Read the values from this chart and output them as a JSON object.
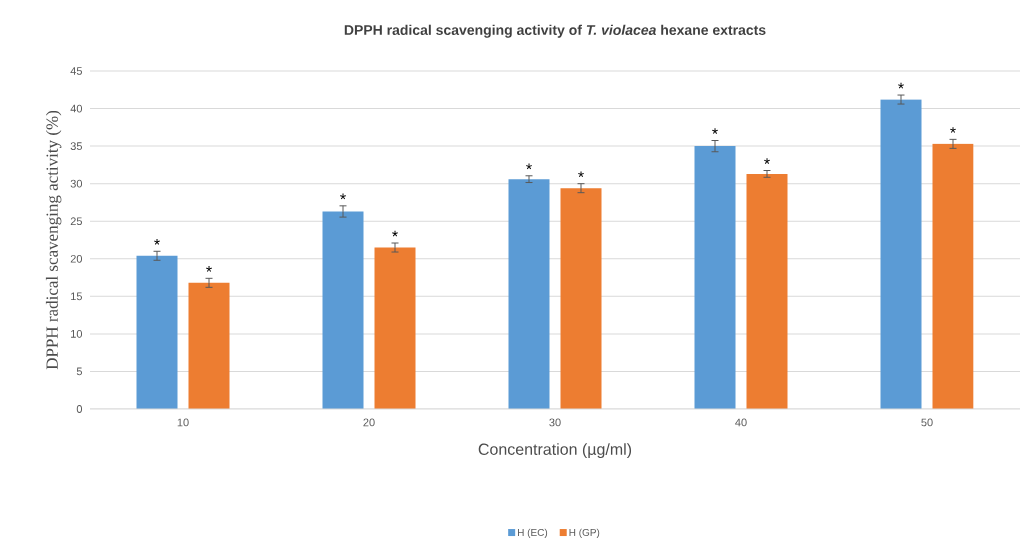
{
  "chart_data": {
    "type": "bar",
    "title": "DPPH radical scavenging activity of *T. violacea* hexane extracts",
    "xlabel": "Concentration (µg/ml)",
    "ylabel": "DPPH radical scavenging activity (%)",
    "categories": [
      "10",
      "20",
      "30",
      "40",
      "50"
    ],
    "series": [
      {
        "name": "H (EC)",
        "color": "#5b9bd5",
        "values": [
          20.4,
          26.3,
          30.6,
          35.0,
          41.2
        ],
        "errors": [
          0.6,
          0.75,
          0.45,
          0.75,
          0.6
        ]
      },
      {
        "name": "H (GP)",
        "color": "#ed7d31",
        "values": [
          16.8,
          21.5,
          29.4,
          31.3,
          35.3
        ],
        "errors": [
          0.6,
          0.6,
          0.6,
          0.45,
          0.6
        ]
      }
    ],
    "ylim": [
      0,
      45
    ],
    "yticks": [
      0,
      5,
      10,
      15,
      20,
      25,
      30,
      35,
      40,
      45
    ],
    "grid": "y",
    "legend": "bottom",
    "annotations": [
      "*",
      "*",
      "*",
      "*",
      "*",
      "*",
      "*",
      "*",
      "*",
      "*"
    ]
  }
}
